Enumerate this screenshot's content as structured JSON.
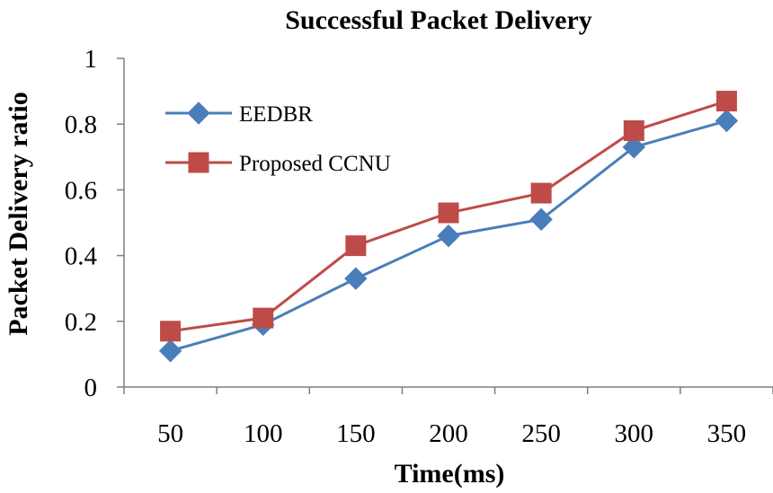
{
  "chart_data": {
    "type": "line",
    "title": "Successful Packet Delivery",
    "xlabel": "Time(ms)",
    "ylabel": "Packet Delivery ratio",
    "categories": [
      "50",
      "100",
      "150",
      "200",
      "250",
      "300",
      "350"
    ],
    "ylim": [
      0,
      1
    ],
    "yticks": [
      "0",
      "0.2",
      "0.4",
      "0.6",
      "0.8",
      "1"
    ],
    "ytick_values": [
      0,
      0.2,
      0.4,
      0.6,
      0.8,
      1
    ],
    "grid": false,
    "legend_position": "top-left",
    "series": [
      {
        "name": "EEDBR",
        "marker": "diamond",
        "color": "#4a7ebb",
        "values": [
          0.11,
          0.19,
          0.33,
          0.46,
          0.51,
          0.73,
          0.81
        ]
      },
      {
        "name": "Proposed CCNU",
        "marker": "square",
        "color": "#be4b48",
        "values": [
          0.17,
          0.21,
          0.43,
          0.53,
          0.59,
          0.78,
          0.87
        ]
      }
    ]
  }
}
